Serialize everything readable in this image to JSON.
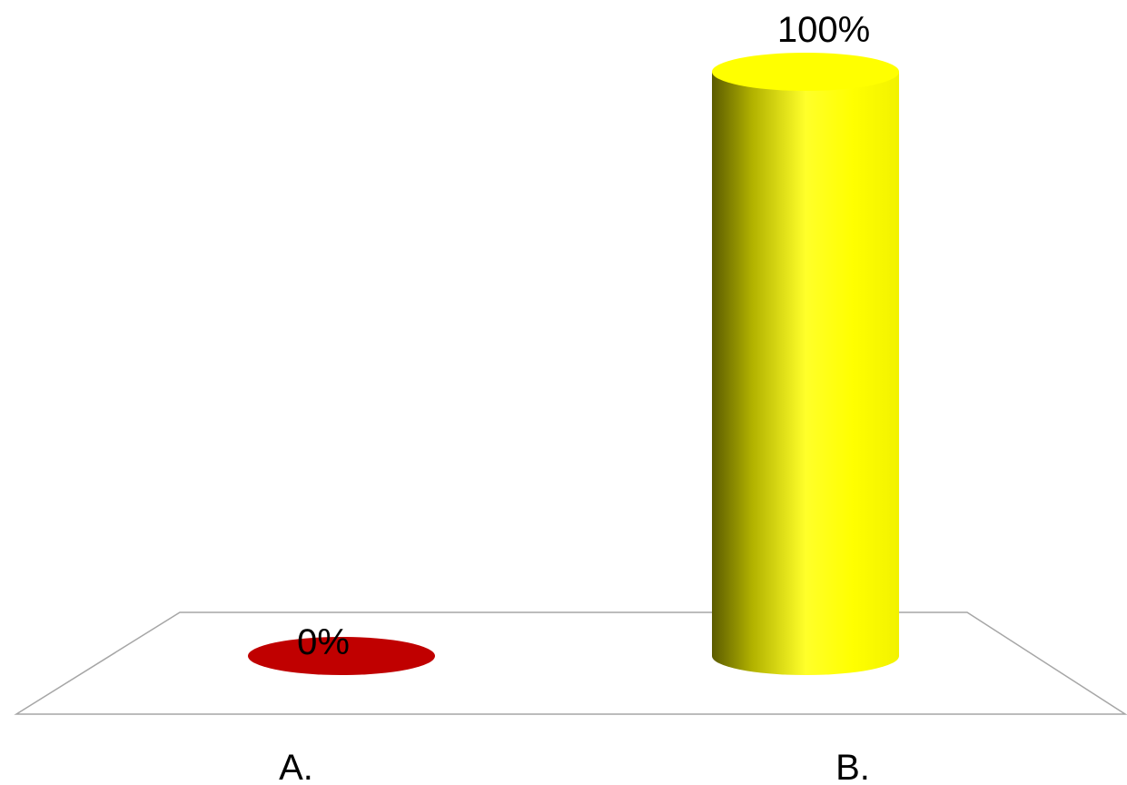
{
  "chart_data": {
    "type": "bar",
    "style": "3d-cylinder",
    "categories": [
      "A.",
      "B."
    ],
    "values": [
      0,
      100
    ],
    "value_labels": [
      "0%",
      "100%"
    ],
    "colors": [
      "#c00000",
      "#ffff00"
    ],
    "ylim": [
      0,
      100
    ],
    "grid": false,
    "legend": "none"
  }
}
